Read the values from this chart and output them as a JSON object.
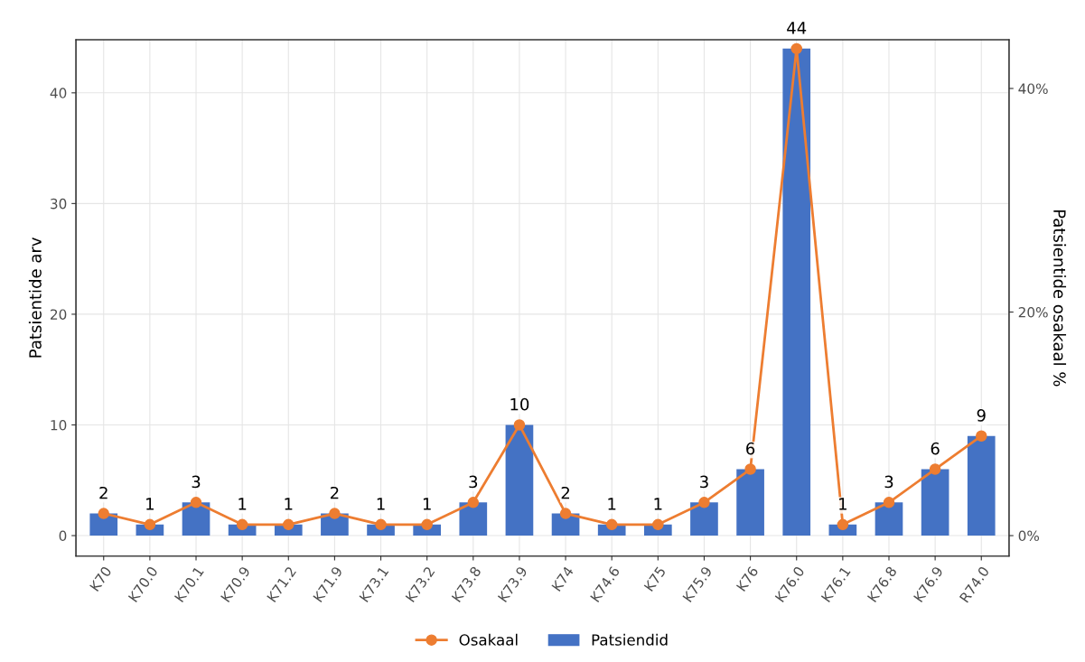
{
  "chart_data": {
    "type": "bar",
    "ylabel": "Patsientide arv",
    "y2label": "Patsientide osakaal %",
    "categories": [
      "K70",
      "K70.0",
      "K70.1",
      "K70.9",
      "K71.2",
      "K71.9",
      "K73.1",
      "K73.2",
      "K73.8",
      "K73.9",
      "K74",
      "K74.6",
      "K75",
      "K75.9",
      "K76",
      "K76.0",
      "K76.1",
      "K76.8",
      "K76.9",
      "R74.0"
    ],
    "series": [
      {
        "name": "Patsiendid",
        "color": "#4472c4",
        "data_labels": true,
        "values": [
          2,
          1,
          3,
          1,
          1,
          2,
          1,
          1,
          3,
          10,
          2,
          1,
          1,
          3,
          6,
          44,
          1,
          3,
          6,
          9
        ]
      },
      {
        "name": "Osakaal",
        "type": "line",
        "axis": "y2",
        "color": "#ed7d31",
        "marker": "circle",
        "line_style": "solid",
        "values": [
          1.98,
          0.99,
          2.97,
          0.99,
          0.99,
          1.98,
          0.99,
          0.99,
          2.97,
          9.9,
          1.98,
          0.99,
          0.99,
          2.97,
          5.94,
          43.56,
          0.99,
          2.97,
          5.94,
          8.91
        ]
      }
    ],
    "ylim": [
      -1.85,
      44.8
    ],
    "yticks": [
      0,
      10,
      20,
      30,
      40
    ],
    "y2lim": [
      -1.83,
      44.36
    ],
    "y2ticks": [
      {
        "value": 0,
        "label": "0%"
      },
      {
        "value": 20,
        "label": "20%"
      },
      {
        "value": 40,
        "label": "40%"
      }
    ],
    "grid": true,
    "legend": "bottom"
  }
}
